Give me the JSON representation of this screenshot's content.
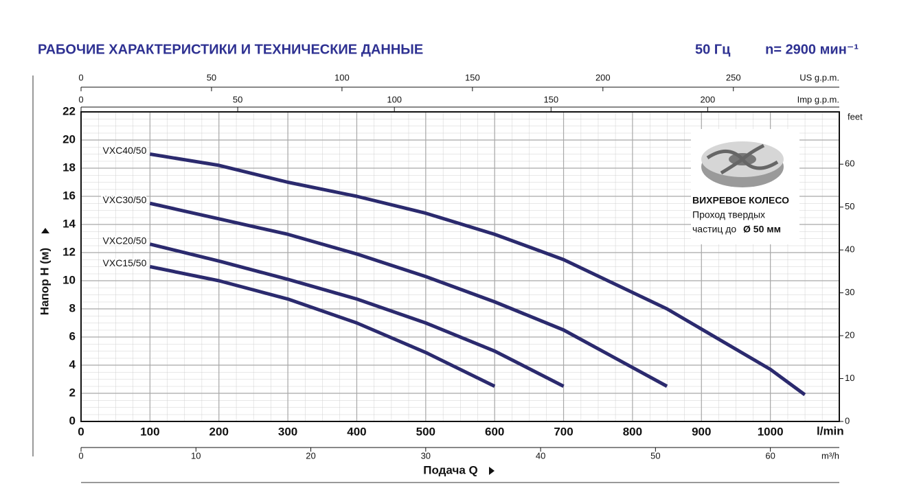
{
  "chart_data": {
    "type": "line",
    "title": "РАБОЧИЕ ХАРАКТЕРИСТИКИ И ТЕХНИЧЕСКИЕ ДАННЫЕ",
    "frequency": "50 Гц",
    "speed": "n= 2900 мин⁻¹",
    "ylabel": "Напор H (м)",
    "xlabel": "Подача Q",
    "xunit": "l/min",
    "xlim": [
      0,
      1100
    ],
    "xticks": [
      0,
      100,
      200,
      300,
      400,
      500,
      600,
      700,
      800,
      900,
      1000
    ],
    "ylim": [
      0,
      22
    ],
    "yticks": [
      0,
      2,
      4,
      6,
      8,
      10,
      12,
      14,
      16,
      18,
      20,
      22
    ],
    "grid": true,
    "color": "#2b2a6e",
    "top_axis": {
      "unit": "US g.p.m.",
      "lim": [
        0,
        290.6
      ],
      "ticks": [
        0,
        50,
        100,
        150,
        200,
        250
      ]
    },
    "imp_axis": {
      "unit": "Imp g.p.m.",
      "lim": [
        0,
        242
      ],
      "ticks": [
        0,
        50,
        100,
        150,
        200
      ]
    },
    "bottom_axis": {
      "unit": "m³/h",
      "lim": [
        0,
        66
      ],
      "ticks": [
        0,
        10,
        20,
        30,
        40,
        50,
        60
      ]
    },
    "y2unit": "feet",
    "y2lim": [
      0,
      72.2
    ],
    "y2ticks": [
      0,
      10,
      20,
      30,
      40,
      50,
      60
    ],
    "series": [
      {
        "name": "VXC40/50",
        "x": [
          100,
          200,
          300,
          400,
          500,
          600,
          700,
          850,
          1000,
          1050
        ],
        "values": [
          19.0,
          18.2,
          17.0,
          16.0,
          14.8,
          13.3,
          11.5,
          8.0,
          3.7,
          1.9
        ]
      },
      {
        "name": "VXC30/50",
        "x": [
          100,
          200,
          300,
          400,
          500,
          600,
          700,
          850
        ],
        "values": [
          15.5,
          14.4,
          13.3,
          11.9,
          10.3,
          8.5,
          6.5,
          2.5
        ]
      },
      {
        "name": "VXC20/50",
        "x": [
          100,
          200,
          300,
          400,
          500,
          600,
          700
        ],
        "values": [
          12.6,
          11.4,
          10.1,
          8.7,
          7.0,
          5.0,
          2.5
        ]
      },
      {
        "name": "VXC15/50",
        "x": [
          100,
          200,
          300,
          400,
          500,
          600
        ],
        "values": [
          11.0,
          10.0,
          8.7,
          7.0,
          4.9,
          2.5
        ]
      }
    ],
    "annotation": {
      "title": "ВИХРЕВОЕ КОЛЕСО",
      "line1": "Проход твердых",
      "line2": "частиц до",
      "line2_bold": "Ø 50 мм"
    }
  }
}
